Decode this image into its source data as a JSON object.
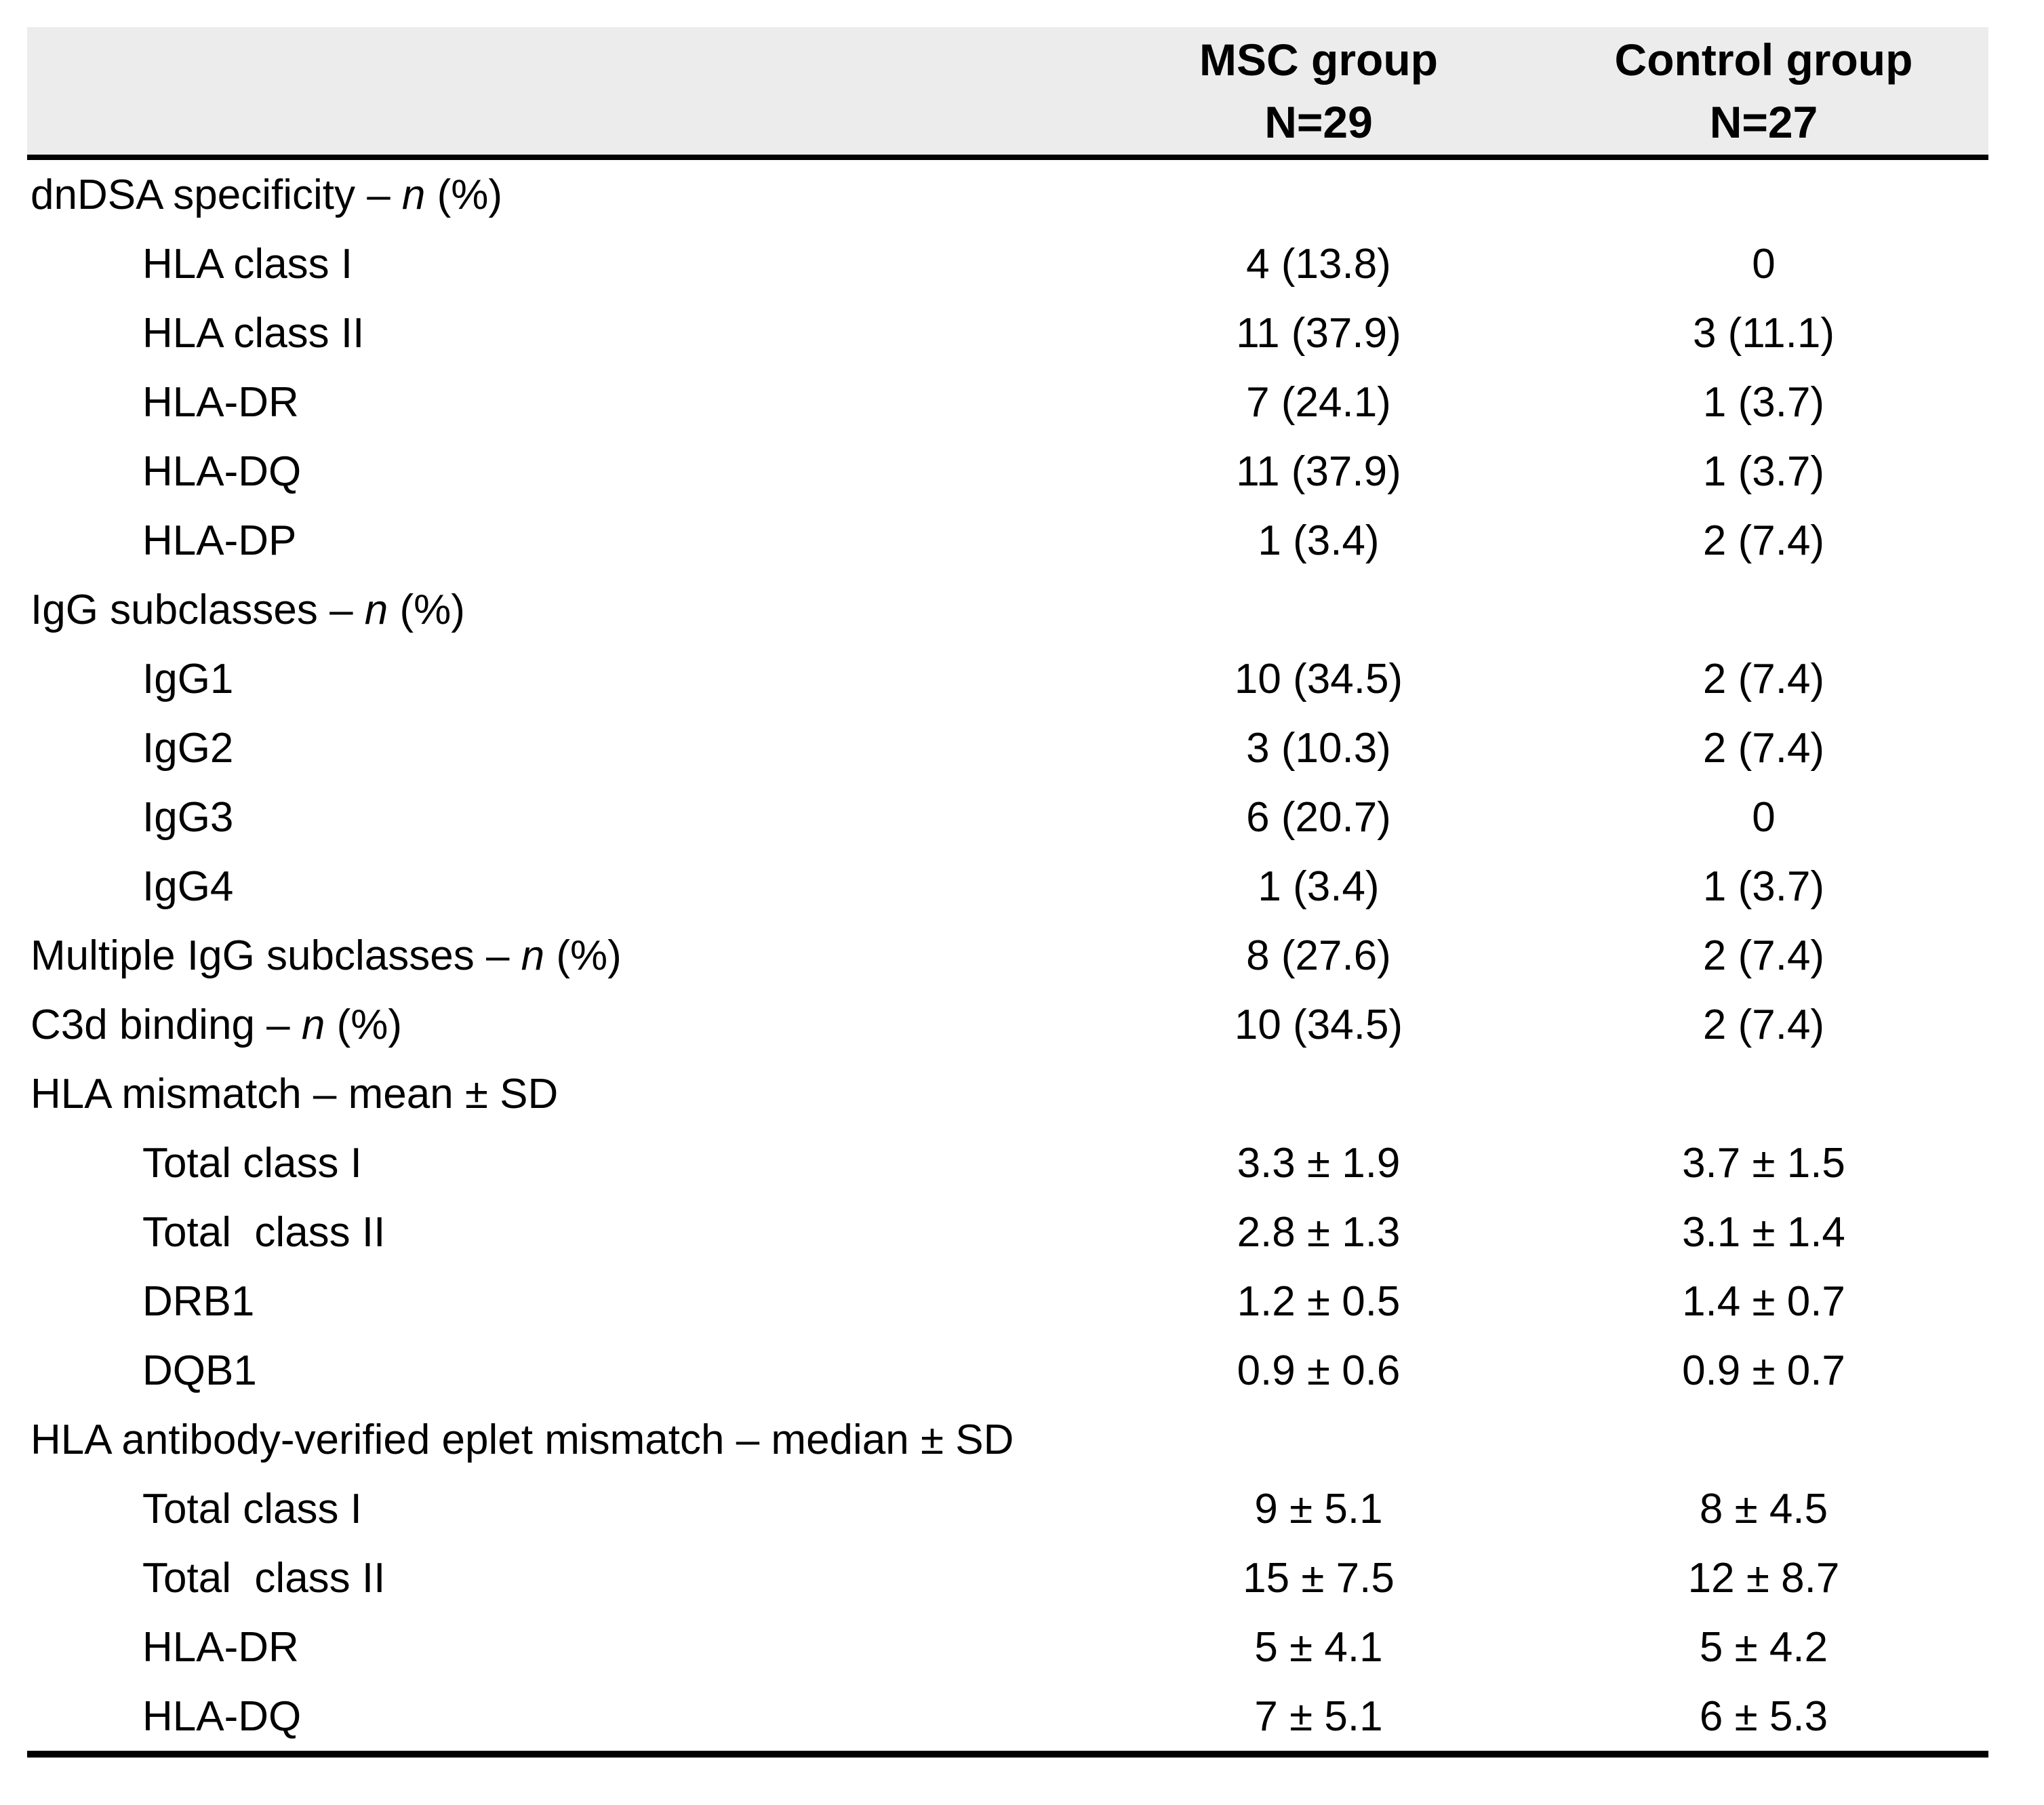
{
  "colors": {
    "header_bg": "#ececec",
    "rule_color": "#000000",
    "text_color": "#000000"
  },
  "table": {
    "header": {
      "label": "",
      "msc": {
        "name": "MSC group",
        "n": "N=29"
      },
      "control": {
        "name": "Control group",
        "n": "N=27"
      }
    },
    "rows": [
      {
        "indent": false,
        "pre": "dnDSA specificity – ",
        "it": "n",
        "post": " (%)",
        "msc": "",
        "ctrl": ""
      },
      {
        "indent": true,
        "pre": "HLA class I",
        "it": "",
        "post": "",
        "msc": "4 (13.8)",
        "ctrl": "0"
      },
      {
        "indent": true,
        "pre": "HLA class II",
        "it": "",
        "post": "",
        "msc": "11 (37.9)",
        "ctrl": "3 (11.1)"
      },
      {
        "indent": true,
        "pre": "HLA-DR",
        "it": "",
        "post": "",
        "msc": "7 (24.1)",
        "ctrl": "1 (3.7)"
      },
      {
        "indent": true,
        "pre": "HLA-DQ",
        "it": "",
        "post": "",
        "msc": "11 (37.9)",
        "ctrl": "1 (3.7)"
      },
      {
        "indent": true,
        "pre": "HLA-DP",
        "it": "",
        "post": "",
        "msc": "1 (3.4)",
        "ctrl": "2 (7.4)"
      },
      {
        "indent": false,
        "pre": "IgG subclasses – ",
        "it": "n",
        "post": " (%)",
        "msc": "",
        "ctrl": ""
      },
      {
        "indent": true,
        "pre": "IgG1",
        "it": "",
        "post": "",
        "msc": "10 (34.5)",
        "ctrl": "2 (7.4)"
      },
      {
        "indent": true,
        "pre": "IgG2",
        "it": "",
        "post": "",
        "msc": "3 (10.3)",
        "ctrl": "2 (7.4)"
      },
      {
        "indent": true,
        "pre": "IgG3",
        "it": "",
        "post": "",
        "msc": "6 (20.7)",
        "ctrl": "0"
      },
      {
        "indent": true,
        "pre": "IgG4",
        "it": "",
        "post": "",
        "msc": "1 (3.4)",
        "ctrl": "1 (3.7)"
      },
      {
        "indent": false,
        "pre": "Multiple IgG subclasses – ",
        "it": "n",
        "post": " (%)",
        "msc": "8 (27.6)",
        "ctrl": "2 (7.4)"
      },
      {
        "indent": false,
        "pre": "C3d binding – ",
        "it": "n",
        "post": " (%)",
        "msc": "10 (34.5)",
        "ctrl": "2 (7.4)"
      },
      {
        "indent": false,
        "pre": "HLA mismatch – mean ± SD",
        "it": "",
        "post": "",
        "msc": "",
        "ctrl": ""
      },
      {
        "indent": true,
        "pre": "Total class I",
        "it": "",
        "post": "",
        "msc": "3.3 ± 1.9",
        "ctrl": "3.7 ± 1.5"
      },
      {
        "indent": true,
        "pre": "Total  class II",
        "it": "",
        "post": "",
        "msc": "2.8 ± 1.3",
        "ctrl": "3.1 ± 1.4"
      },
      {
        "indent": true,
        "pre": "DRB1",
        "it": "",
        "post": "",
        "msc": "1.2 ± 0.5",
        "ctrl": "1.4 ± 0.7"
      },
      {
        "indent": true,
        "pre": "DQB1",
        "it": "",
        "post": "",
        "msc": "0.9 ± 0.6",
        "ctrl": "0.9 ± 0.7"
      },
      {
        "indent": false,
        "pre": "HLA antibody-verified eplet mismatch – median ± SD",
        "it": "",
        "post": "",
        "msc": "",
        "ctrl": ""
      },
      {
        "indent": true,
        "pre": "Total class I",
        "it": "",
        "post": "",
        "msc": "9 ± 5.1",
        "ctrl": "8 ± 4.5"
      },
      {
        "indent": true,
        "pre": "Total  class II",
        "it": "",
        "post": "",
        "msc": "15 ± 7.5",
        "ctrl": "12 ± 8.7"
      },
      {
        "indent": true,
        "pre": "HLA-DR",
        "it": "",
        "post": "",
        "msc": "5 ± 4.1",
        "ctrl": "5 ± 4.2"
      },
      {
        "indent": true,
        "pre": "HLA-DQ",
        "it": "",
        "post": "",
        "msc": "7 ± 5.1",
        "ctrl": "6 ± 5.3"
      }
    ]
  }
}
